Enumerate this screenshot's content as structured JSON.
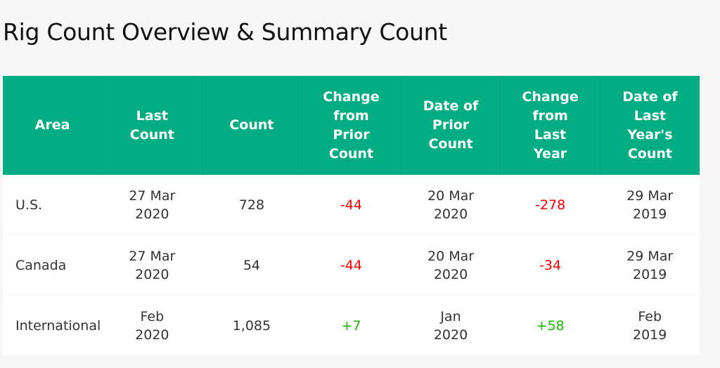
{
  "title": "Rig Count Overview & Summary Count",
  "colors": {
    "header_bg": "#03ad84",
    "header_text": "#ffffff",
    "negative": "#ff0000",
    "positive": "#12b800",
    "page_bg": "#f7f7f7"
  },
  "table": {
    "headers": [
      "Area",
      "Last\nCount",
      "Count",
      "Change\nfrom\nPrior\nCount",
      "Date of\nPrior\nCount",
      "Change\nfrom\nLast\nYear",
      "Date of\nLast\nYear's\nCount"
    ],
    "rows": [
      {
        "area": "U.S.",
        "last_count": "27 Mar\n2020",
        "count": "728",
        "change_prior": "-44",
        "date_prior": "20 Mar\n2020",
        "change_last_year": "-278",
        "date_last_year": "29 Mar\n2019"
      },
      {
        "area": "Canada",
        "last_count": "27 Mar\n2020",
        "count": "54",
        "change_prior": "-44",
        "date_prior": "20 Mar\n2020",
        "change_last_year": "-34",
        "date_last_year": "29 Mar\n2019"
      },
      {
        "area": "International",
        "last_count": "Feb\n2020",
        "count": "1,085",
        "change_prior": "+7",
        "date_prior": "Jan\n2020",
        "change_last_year": "+58",
        "date_last_year": "Feb\n2019"
      }
    ]
  }
}
